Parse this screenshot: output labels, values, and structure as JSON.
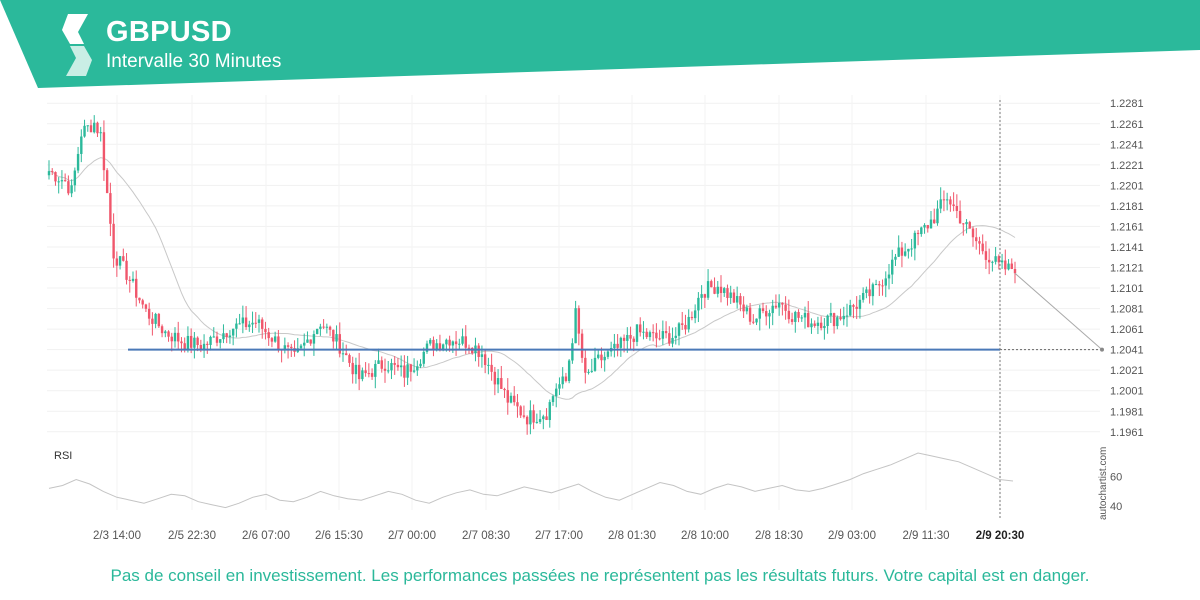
{
  "header": {
    "symbol": "GBPUSD",
    "interval": "Intervalle 30 Minutes",
    "brand_color": "#2bb99b",
    "logo_icon": "autochartist-logo-icon"
  },
  "watermark": "autochartist.com",
  "disclaimer": "Pas de conseil en investissement. Les performances passées ne représentent pas les résultats futurs. Votre capital est en danger.",
  "chart_data": {
    "type": "candlestick",
    "y_ticks": [
      "1.2281",
      "1.2261",
      "1.2241",
      "1.2221",
      "1.2201",
      "1.2181",
      "1.2161",
      "1.2141",
      "1.2121",
      "1.2101",
      "1.2081",
      "1.2061",
      "1.2041",
      "1.2021",
      "1.2001",
      "1.1981",
      "1.1961"
    ],
    "ylim": [
      1.1953,
      1.2289
    ],
    "x_labels": [
      "2/3 14:00",
      "2/5 22:30",
      "2/6 07:00",
      "2/6 15:30",
      "2/7 00:00",
      "2/7 08:30",
      "2/7 17:00",
      "2/8 01:30",
      "2/8 10:00",
      "2/8 18:30",
      "2/9 03:00",
      "2/9 11:30",
      "2/9 20:30"
    ],
    "current_time_label": "2/9 20:30",
    "bullish_color": "#2bb99b",
    "bearish_color": "#f0566b",
    "price_path": [
      {
        "bar": 0,
        "price": 1.2215
      },
      {
        "bar": 5,
        "price": 1.2205
      },
      {
        "bar": 7,
        "price": 1.2195
      },
      {
        "bar": 10,
        "price": 1.2252
      },
      {
        "bar": 14,
        "price": 1.2262
      },
      {
        "bar": 16,
        "price": 1.225
      },
      {
        "bar": 20,
        "price": 1.2135
      },
      {
        "bar": 24,
        "price": 1.2115
      },
      {
        "bar": 30,
        "price": 1.2078
      },
      {
        "bar": 36,
        "price": 1.2058
      },
      {
        "bar": 42,
        "price": 1.2048
      },
      {
        "bar": 48,
        "price": 1.2045
      },
      {
        "bar": 56,
        "price": 1.2062
      },
      {
        "bar": 64,
        "price": 1.2068
      },
      {
        "bar": 70,
        "price": 1.205
      },
      {
        "bar": 76,
        "price": 1.2032
      },
      {
        "bar": 84,
        "price": 1.2068
      },
      {
        "bar": 90,
        "price": 1.2045
      },
      {
        "bar": 96,
        "price": 1.2013
      },
      {
        "bar": 104,
        "price": 1.2028
      },
      {
        "bar": 110,
        "price": 1.2018
      },
      {
        "bar": 118,
        "price": 1.2045
      },
      {
        "bar": 124,
        "price": 1.2052
      },
      {
        "bar": 130,
        "price": 1.2048
      },
      {
        "bar": 134,
        "price": 1.2038
      },
      {
        "bar": 142,
        "price": 1.1992
      },
      {
        "bar": 148,
        "price": 1.1975
      },
      {
        "bar": 154,
        "price": 1.198
      },
      {
        "bar": 157,
        "price": 1.2005
      },
      {
        "bar": 160,
        "price": 1.201
      },
      {
        "bar": 163,
        "price": 1.2075
      },
      {
        "bar": 166,
        "price": 1.2012
      },
      {
        "bar": 170,
        "price": 1.203
      },
      {
        "bar": 176,
        "price": 1.2042
      },
      {
        "bar": 182,
        "price": 1.2058
      },
      {
        "bar": 188,
        "price": 1.2052
      },
      {
        "bar": 194,
        "price": 1.2055
      },
      {
        "bar": 198,
        "price": 1.207
      },
      {
        "bar": 202,
        "price": 1.2098
      },
      {
        "bar": 207,
        "price": 1.2104
      },
      {
        "bar": 212,
        "price": 1.209
      },
      {
        "bar": 218,
        "price": 1.207
      },
      {
        "bar": 222,
        "price": 1.208
      },
      {
        "bar": 226,
        "price": 1.2088
      },
      {
        "bar": 230,
        "price": 1.2075
      },
      {
        "bar": 236,
        "price": 1.2068
      },
      {
        "bar": 244,
        "price": 1.2072
      },
      {
        "bar": 250,
        "price": 1.2085
      },
      {
        "bar": 256,
        "price": 1.21
      },
      {
        "bar": 262,
        "price": 1.213
      },
      {
        "bar": 268,
        "price": 1.2148
      },
      {
        "bar": 274,
        "price": 1.217
      },
      {
        "bar": 278,
        "price": 1.219
      },
      {
        "bar": 282,
        "price": 1.217
      },
      {
        "bar": 286,
        "price": 1.215
      },
      {
        "bar": 290,
        "price": 1.2135
      },
      {
        "bar": 294,
        "price": 1.2122
      },
      {
        "bar": 297,
        "price": 1.2119
      },
      {
        "bar": 299,
        "price": 1.2122
      }
    ],
    "support_level": 1.2041,
    "forecast_target": 1.2041,
    "rsi": {
      "label": "RSI",
      "ticks": [
        "60",
        "40"
      ],
      "ylim": [
        34,
        78
      ],
      "values": [
        52,
        54,
        58,
        55,
        50,
        46,
        44,
        42,
        45,
        48,
        47,
        43,
        41,
        39,
        42,
        46,
        48,
        44,
        43,
        46,
        50,
        47,
        45,
        44,
        47,
        50,
        48,
        44,
        42,
        46,
        49,
        51,
        48,
        47,
        50,
        53,
        51,
        49,
        52,
        55,
        50,
        46,
        44,
        48,
        52,
        56,
        54,
        50,
        48,
        52,
        55,
        53,
        50,
        52,
        54,
        51,
        50,
        52,
        55,
        58,
        62,
        65,
        68,
        72,
        76,
        74,
        72,
        70,
        66,
        62,
        58,
        57
      ]
    }
  }
}
